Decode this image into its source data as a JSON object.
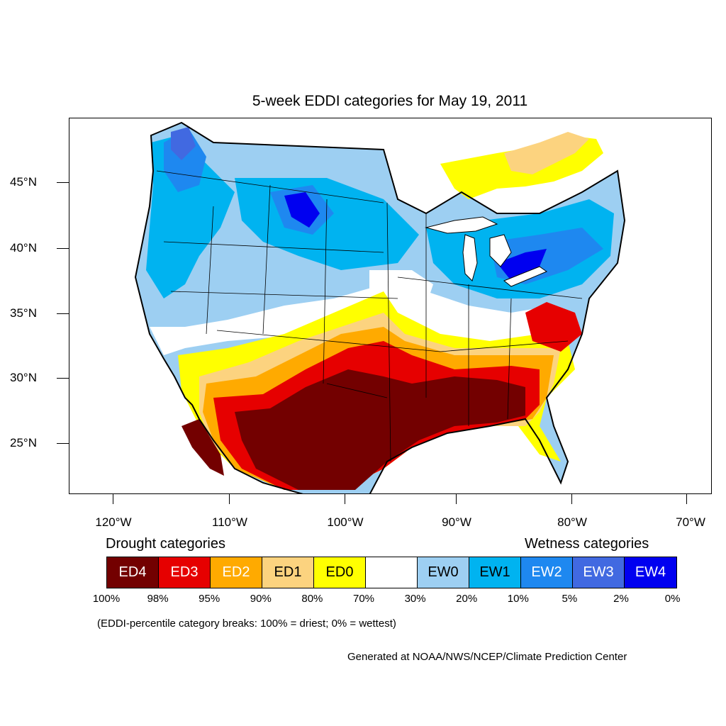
{
  "title": "5-week EDDI categories for May 19, 2011",
  "y_axis": [
    "45°N",
    "40°N",
    "35°N",
    "30°N",
    "25°N"
  ],
  "x_axis": [
    "120°W",
    "110°W",
    "100°W",
    "90°W",
    "80°W",
    "70°W"
  ],
  "headings": {
    "drought": "Drought categories",
    "wetness": "Wetness categories"
  },
  "legend": [
    {
      "label": "ED4",
      "color": "#730000",
      "text_color": "#ffffff"
    },
    {
      "label": "ED3",
      "color": "#e60000",
      "text_color": "#ffffff"
    },
    {
      "label": "ED2",
      "color": "#ffaa00",
      "text_color": "#ffffff"
    },
    {
      "label": "ED1",
      "color": "#fcd37f",
      "text_color": "#000000"
    },
    {
      "label": "ED0",
      "color": "#ffff00",
      "text_color": "#000000"
    },
    {
      "label": "",
      "color": "#ffffff",
      "text_color": "#000000"
    },
    {
      "label": "EW0",
      "color": "#9dcff2",
      "text_color": "#000000"
    },
    {
      "label": "EW1",
      "color": "#00b3f0",
      "text_color": "#000000"
    },
    {
      "label": "EW2",
      "color": "#1e88f0",
      "text_color": "#ffffff"
    },
    {
      "label": "EW3",
      "color": "#4169e1",
      "text_color": "#ffffff"
    },
    {
      "label": "EW4",
      "color": "#0000f0",
      "text_color": "#ffffff"
    }
  ],
  "percentiles": [
    "100%",
    "98%",
    "95%",
    "90%",
    "80%",
    "70%",
    "30%",
    "20%",
    "10%",
    "5%",
    "2%",
    "0%"
  ],
  "note": "(EDDI-percentile category breaks: 100% = driest; 0% = wettest)",
  "credit": "Generated at NOAA/NWS/NCEP/Climate Prediction Center"
}
